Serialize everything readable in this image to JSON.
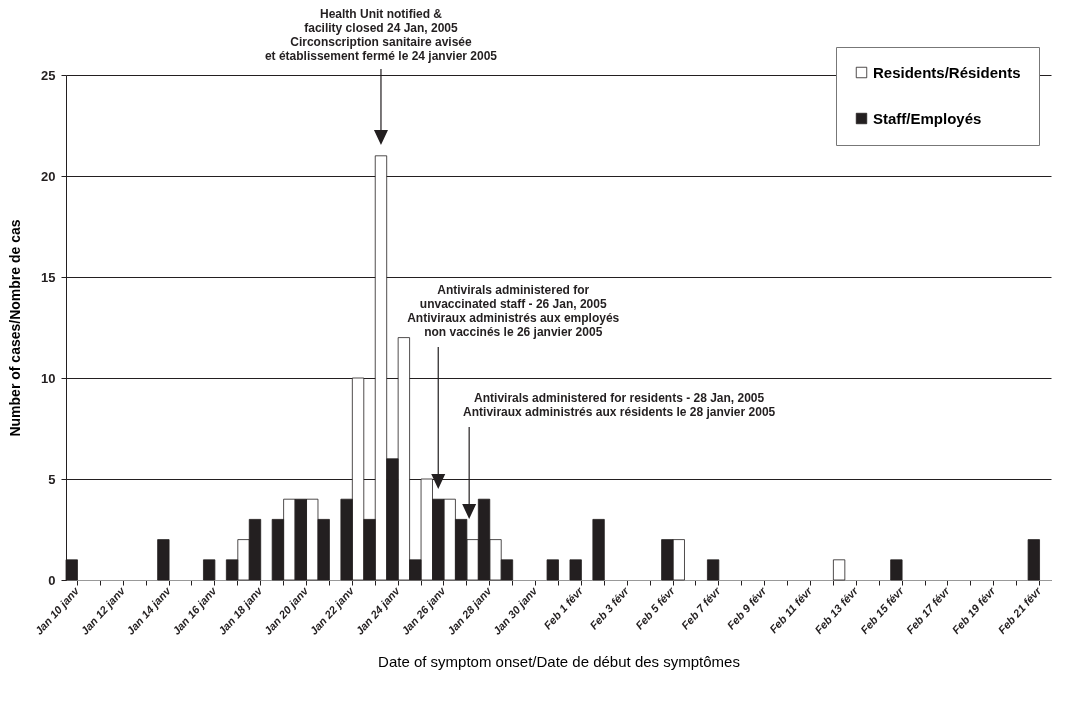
{
  "chart_data": {
    "type": "bar",
    "xlabel": "Date of symptom onset/Date de début des symptômes",
    "ylabel": "Number of cases/Nombre de cas",
    "categories": [
      "Jan 10 janv",
      null,
      "Jan 12 janv",
      null,
      "Jan 14 janv",
      null,
      "Jan 16 janv",
      null,
      "Jan 18 janv",
      null,
      "Jan 20 janv",
      null,
      "Jan 22 janv",
      null,
      "Jan 24 janv",
      null,
      "Jan 26 janv",
      null,
      "Jan 28 janv",
      null,
      "Jan 30 janv",
      null,
      "Feb 1 févr",
      null,
      "Feb 3 févr",
      null,
      "Feb 5 févr",
      null,
      "Feb 7 févr",
      null,
      "Feb 9 févr",
      null,
      "Feb 11 févr",
      null,
      "Feb 13 févr",
      null,
      "Feb 15 févr",
      null,
      "Feb 17 févr",
      null,
      "Feb 19 févr",
      null,
      "Feb 21 févr"
    ],
    "series": [
      {
        "name": "Residents/Résidents",
        "color": "#ffffff",
        "values": [
          0,
          0,
          0,
          0,
          0,
          0,
          0,
          2,
          0,
          4,
          4,
          0,
          10,
          21,
          12,
          5,
          4,
          2,
          2,
          0,
          0,
          0,
          0,
          0,
          0,
          0,
          2,
          0,
          0,
          0,
          0,
          0,
          0,
          1,
          0,
          0,
          0,
          0,
          0,
          0,
          0,
          0,
          0
        ]
      },
      {
        "name": "Staff/Employés",
        "color": "#231f20",
        "values": [
          1,
          0,
          0,
          0,
          2,
          0,
          1,
          1,
          3,
          3,
          4,
          3,
          4,
          3,
          6,
          1,
          4,
          3,
          4,
          1,
          0,
          1,
          1,
          3,
          0,
          0,
          2,
          0,
          1,
          0,
          0,
          0,
          0,
          0,
          0,
          0,
          1,
          0,
          0,
          0,
          0,
          0,
          2
        ]
      }
    ],
    "ylim": [
      0,
      25
    ],
    "yticks": [
      0,
      5,
      10,
      15,
      20,
      25
    ],
    "grid": "y",
    "legend": "top right",
    "annotations": [
      "Health Unit notified &\nfacility closed 24 Jan, 2005\nCirconscription sanitaire avisée\net établissement fermé le 24 janvier 2005",
      "Antivirals administered for\nunvaccinated staff - 26 Jan, 2005\nAntiviraux administrés aux employés\nnon vaccinés le 26 janvier 2005",
      "Antivirals administered for residents - 28 Jan, 2005\nAntiviraux administrés aux  résidents le 28 janvier 2005"
    ]
  }
}
